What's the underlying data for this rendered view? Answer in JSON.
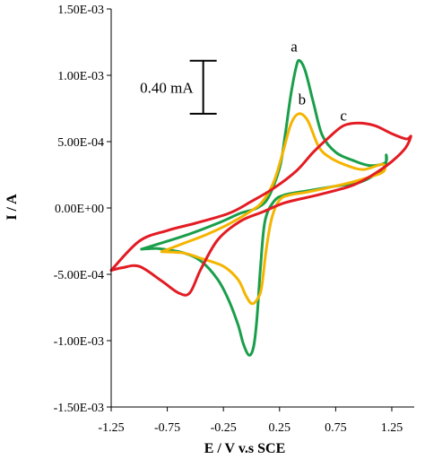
{
  "chart_data": {
    "type": "line",
    "title": "",
    "xlabel": "E / V v.s SCE",
    "ylabel": "I / A",
    "xlim": [
      -1.25,
      1.45
    ],
    "ylim": [
      -0.0015,
      0.0015
    ],
    "x_ticks": [
      -1.25,
      -0.75,
      -0.25,
      0.25,
      0.75,
      1.25
    ],
    "x_tick_labels": [
      "-1.25",
      "-0.75",
      "-0.25",
      "0.25",
      "0.75",
      "1.25"
    ],
    "y_ticks": [
      0.0015,
      0.001,
      0.0005,
      0.0,
      -0.0005,
      -0.001,
      -0.0015
    ],
    "y_tick_labels": [
      "1.50E-03",
      "1.00E-03",
      "5.00E-04",
      "0.00E+00",
      "-5.00E-04",
      "-1.00E-03",
      "-1.50E-03"
    ],
    "grid": false,
    "scale_bar": {
      "label": "0.40 mA",
      "current": 0.0004,
      "x": -0.43,
      "y_center": 0.00091
    },
    "series": [
      {
        "name": "a",
        "color": "#1a9e4a",
        "label_at": [
          0.38,
          0.00118
        ],
        "points": [
          [
            -0.98,
            -0.00031
          ],
          [
            -0.6,
            -0.00021
          ],
          [
            -0.3,
            -0.000115
          ],
          [
            -0.1,
            -4e-05
          ],
          [
            0.05,
            0.0
          ],
          [
            0.15,
            8e-05
          ],
          [
            0.25,
            0.0003
          ],
          [
            0.3,
            0.00055
          ],
          [
            0.35,
            0.00085
          ],
          [
            0.4,
            0.00107
          ],
          [
            0.43,
            0.00111
          ],
          [
            0.48,
            0.00103
          ],
          [
            0.55,
            0.0008
          ],
          [
            0.63,
            0.00055
          ],
          [
            0.75,
            0.00042
          ],
          [
            0.9,
            0.00036
          ],
          [
            1.05,
            0.00032
          ],
          [
            1.19,
            0.00034
          ],
          [
            1.2,
            0.0004
          ],
          [
            1.19,
            0.00032
          ],
          [
            1.1,
            0.00025
          ],
          [
            0.95,
            0.00019
          ],
          [
            0.75,
            0.000165
          ],
          [
            0.5,
            0.00013
          ],
          [
            0.3,
            0.0001
          ],
          [
            0.2,
            5e-05
          ],
          [
            0.12,
            -0.0001
          ],
          [
            0.08,
            -0.00045
          ],
          [
            0.05,
            -0.00082
          ],
          [
            0.02,
            -0.00104
          ],
          [
            -0.02,
            -0.00111
          ],
          [
            -0.07,
            -0.00103
          ],
          [
            -0.12,
            -0.00088
          ],
          [
            -0.2,
            -0.0007
          ],
          [
            -0.3,
            -0.00054
          ],
          [
            -0.45,
            -0.0004
          ],
          [
            -0.6,
            -0.00034
          ],
          [
            -0.75,
            -0.000315
          ],
          [
            -0.85,
            -0.000305
          ],
          [
            -0.98,
            -0.00031
          ]
        ]
      },
      {
        "name": "b",
        "color": "#f5b400",
        "label_at": [
          0.45,
          0.00078
        ],
        "points": [
          [
            -0.8,
            -0.00033
          ],
          [
            -0.6,
            -0.000265
          ],
          [
            -0.4,
            -0.0002
          ],
          [
            -0.2,
            -0.00012
          ],
          [
            0.0,
            -2e-05
          ],
          [
            0.1,
            5e-05
          ],
          [
            0.2,
            0.0002
          ],
          [
            0.28,
            0.00042
          ],
          [
            0.35,
            0.00063
          ],
          [
            0.42,
            0.00071
          ],
          [
            0.5,
            0.00066
          ],
          [
            0.6,
            0.00046
          ],
          [
            0.7,
            0.00038
          ],
          [
            0.85,
            0.00032
          ],
          [
            1.0,
            0.00029
          ],
          [
            1.17,
            0.00033
          ],
          [
            1.17,
            0.00027
          ],
          [
            1.0,
            0.00022
          ],
          [
            0.8,
            0.000175
          ],
          [
            0.5,
            0.00012
          ],
          [
            0.35,
            0.0001
          ],
          [
            0.25,
            6e-05
          ],
          [
            0.18,
            -8e-05
          ],
          [
            0.13,
            -0.00032
          ],
          [
            0.09,
            -0.0006
          ],
          [
            0.05,
            -0.00069
          ],
          [
            0.0,
            -0.00072
          ],
          [
            -0.05,
            -0.00066
          ],
          [
            -0.12,
            -0.00054
          ],
          [
            -0.25,
            -0.00044
          ],
          [
            -0.45,
            -0.00038
          ],
          [
            -0.6,
            -0.00034
          ],
          [
            -0.8,
            -0.00033
          ]
        ]
      },
      {
        "name": "c",
        "color": "#e31b23",
        "label_at": [
          0.82,
          0.00066
        ],
        "points": [
          [
            -1.25,
            -0.00047
          ],
          [
            -1.0,
            -0.00025
          ],
          [
            -0.75,
            -0.00017
          ],
          [
            -0.5,
            -0.000115
          ],
          [
            -0.2,
            -4e-05
          ],
          [
            0.0,
            5e-05
          ],
          [
            0.2,
            0.00015
          ],
          [
            0.4,
            0.00028
          ],
          [
            0.55,
            0.00042
          ],
          [
            0.7,
            0.00054
          ],
          [
            0.82,
            0.00062
          ],
          [
            0.95,
            0.00064
          ],
          [
            1.1,
            0.00062
          ],
          [
            1.25,
            0.00056
          ],
          [
            1.38,
            0.00052
          ],
          [
            1.42,
            0.00054
          ],
          [
            1.37,
            0.00045
          ],
          [
            1.25,
            0.00035
          ],
          [
            1.1,
            0.00026
          ],
          [
            0.9,
            0.00017
          ],
          [
            0.6,
            0.0001
          ],
          [
            0.3,
            4e-05
          ],
          [
            0.1,
            -3e-05
          ],
          [
            -0.1,
            -0.0001
          ],
          [
            -0.3,
            -0.00024
          ],
          [
            -0.45,
            -0.00046
          ],
          [
            -0.55,
            -0.00064
          ],
          [
            -0.65,
            -0.00064
          ],
          [
            -0.8,
            -0.00055
          ],
          [
            -1.0,
            -0.00044
          ],
          [
            -1.15,
            -0.00045
          ],
          [
            -1.25,
            -0.00047
          ]
        ]
      }
    ]
  }
}
